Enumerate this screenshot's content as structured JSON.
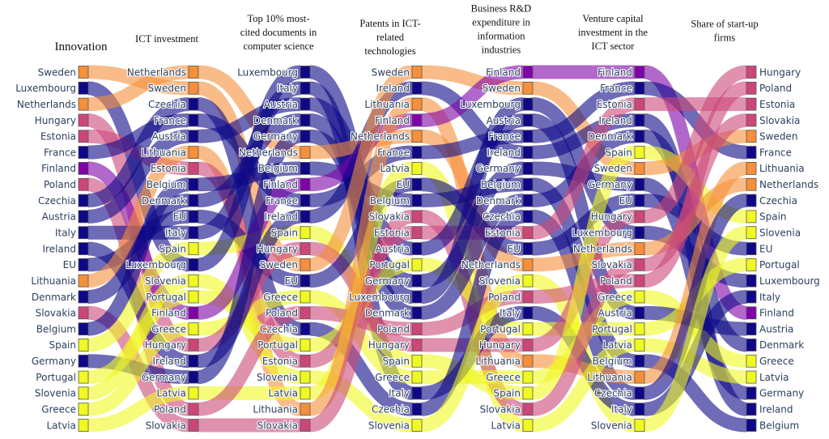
{
  "chart_data": {
    "type": "parallel-ranking",
    "title": "",
    "stages": [
      {
        "title": [
          "Innovation"
        ],
        "order": [
          "Sweden",
          "Luxembourg",
          "Netherlands",
          "Hungary",
          "Estonia",
          "France",
          "Finland",
          "Poland",
          "Czechia",
          "Austria",
          "Italy",
          "Ireland",
          "EU",
          "Lithuania",
          "Denmark",
          "Slovakia",
          "Belgium",
          "Spain",
          "Germany",
          "Portugal",
          "Slovenia",
          "Greece",
          "Latvia"
        ]
      },
      {
        "title": [
          "ICT investment"
        ],
        "order": [
          "Netherlands",
          "Sweden",
          "Czechia",
          "France",
          "Austria",
          "Lithuania",
          "Estonia",
          "Belgium",
          "Denmark",
          "EU",
          "Italy",
          "Spain",
          "Luxembourg",
          "Slovenia",
          "Portugal",
          "Finland",
          "Greece",
          "Hungary",
          "Ireland",
          "Germany",
          "Latvia",
          "Poland",
          "Slovakia"
        ]
      },
      {
        "title": [
          "Top 10% most-",
          "cited documents in",
          "computer science"
        ],
        "order": [
          "Luxembourg",
          "Italy",
          "Austria",
          "Denmark",
          "Germany",
          "Netherlands",
          "Belgium",
          "Finland",
          "France",
          "Ireland",
          "Spain",
          "Hungary",
          "Sweden",
          "EU",
          "Greece",
          "Poland",
          "Czechia",
          "Portugal",
          "Estonia",
          "Slovenia",
          "Latvia",
          "Lithuania",
          "Slovakia"
        ]
      },
      {
        "title": [
          "Patents in ICT-",
          "related",
          "technologies"
        ],
        "order": [
          "Sweden",
          "Ireland",
          "Lithuania",
          "Finland",
          "Netherlands",
          "France",
          "Latvia",
          "EU",
          "Belgium",
          "Slovakia",
          "Estonia",
          "Austria",
          "Portugal",
          "Germany",
          "Luxembourg",
          "Denmark",
          "Poland",
          "Hungary",
          "Spain",
          "Greece",
          "Italy",
          "Czechia",
          "Slovenia"
        ]
      },
      {
        "title": [
          "Business R&D",
          "expenditure in",
          "information",
          "industries"
        ],
        "order": [
          "Finland",
          "Sweden",
          "Luxembourg",
          "Austria",
          "France",
          "Ireland",
          "Germany",
          "Belgium",
          "Denmark",
          "Czechia",
          "Estonia",
          "EU",
          "Netherlands",
          "Slovenia",
          "Poland",
          "Italy",
          "Portugal",
          "Hungary",
          "Lithuania",
          "Greece",
          "Spain",
          "Slovakia",
          "Latvia"
        ]
      },
      {
        "title": [
          "Venture capital",
          "investment in the",
          "ICT sector"
        ],
        "order": [
          "Finland",
          "France",
          "Estonia",
          "Ireland",
          "Denmark",
          "Spain",
          "Sweden",
          "Germany",
          "EU",
          "Hungary",
          "Luxembourg",
          "Netherlands",
          "Slovakia",
          "Poland",
          "Greece",
          "Austria",
          "Portugal",
          "Latvia",
          "Belgium",
          "Lithuania",
          "Czechia",
          "Italy",
          "Slovenia"
        ]
      },
      {
        "title": [
          "Share of start-up",
          "firms"
        ],
        "order": [
          "Hungary",
          "Poland",
          "Estonia",
          "Slovakia",
          "Sweden",
          "France",
          "Lithuania",
          "Netherlands",
          "Czechia",
          "Spain",
          "Slovenia",
          "EU",
          "Portugal",
          "Luxembourg",
          "Italy",
          "Finland",
          "Austria",
          "Denmark",
          "Greece",
          "Latvia",
          "Germany",
          "Ireland",
          "Belgium"
        ]
      }
    ],
    "country_groups": {
      "Sweden": "orange",
      "Netherlands": "orange",
      "Lithuania": "orange",
      "Hungary": "pink",
      "Estonia": "pink",
      "Poland": "pink",
      "Slovakia": "pink",
      "Finland": "purple",
      "Spain": "yellow",
      "Portugal": "yellow",
      "Slovenia": "yellow",
      "Greece": "yellow",
      "Latvia": "yellow",
      "Luxembourg": "navy",
      "France": "navy",
      "Czechia": "navy",
      "Austria": "navy",
      "Italy": "navy",
      "Ireland": "navy",
      "EU": "navy",
      "Denmark": "navy",
      "Belgium": "navy",
      "Germany": "navy"
    },
    "group_colors": {
      "orange": "#f58f3a",
      "pink": "#cc4778",
      "purple": "#7e03a8",
      "yellow": "#f0f921",
      "navy": "#0d0887"
    },
    "flow_opacity": 0.6,
    "legend": "none",
    "grid": false
  }
}
